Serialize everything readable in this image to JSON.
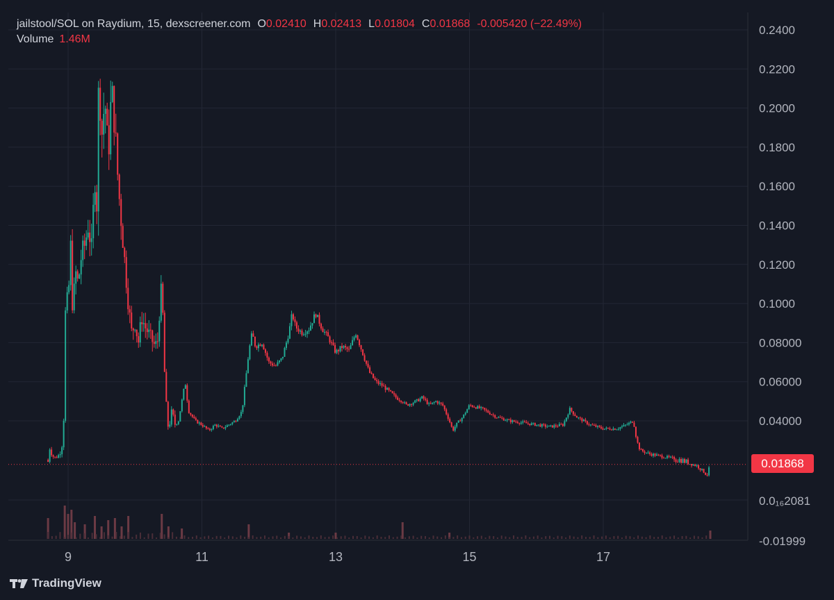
{
  "legend": {
    "symbol": "jailstool/SOL on Raydium, 15, dexscreener.com",
    "o_key": "O",
    "o_val": "0.02410",
    "h_key": "H",
    "h_val": "0.02413",
    "l_key": "L",
    "l_val": "0.01804",
    "c_key": "C",
    "c_val": "0.01868",
    "change": "-0.005420 (−22.49%)",
    "volume_label": "Volume",
    "volume_value": "1.46M"
  },
  "last_price_label": "0.01868",
  "brand": {
    "name": "TradingView",
    "icon": "tradingview-logo-icon"
  },
  "colors": {
    "background": "#151924",
    "up": "#22ab94",
    "down": "#f23645",
    "grid": "#232734",
    "axis_text": "#b2b5be"
  },
  "chart_data": {
    "type": "candlestick",
    "title": "jailstool/SOL on Raydium, 15, dexscreener.com",
    "x_ticks": [
      "9",
      "11",
      "13",
      "15",
      "17"
    ],
    "y_ticks": [
      "0.2400",
      "0.2200",
      "0.2000",
      "0.1800",
      "0.1600",
      "0.1400",
      "0.1200",
      "0.1000",
      "0.08000",
      "0.06000",
      "0.04000",
      "0.01868",
      "0.0₁₆2081",
      "-0.01999"
    ],
    "ylim": [
      -0.02,
      0.245
    ],
    "last_price": 0.01868,
    "grid": true,
    "price_path_day_value": [
      [
        8.7,
        0.02
      ],
      [
        8.72,
        0.0265
      ],
      [
        8.76,
        0.0225
      ],
      [
        8.8,
        0.021
      ],
      [
        8.85,
        0.022
      ],
      [
        8.9,
        0.025
      ],
      [
        8.93,
        0.034
      ],
      [
        8.95,
        0.07
      ],
      [
        8.97,
        0.12
      ],
      [
        9.0,
        0.085
      ],
      [
        9.03,
        0.145
      ],
      [
        9.05,
        0.105
      ],
      [
        9.08,
        0.095
      ],
      [
        9.1,
        0.118
      ],
      [
        9.15,
        0.11
      ],
      [
        9.2,
        0.125
      ],
      [
        9.25,
        0.13
      ],
      [
        9.3,
        0.14
      ],
      [
        9.35,
        0.128
      ],
      [
        9.4,
        0.165
      ],
      [
        9.43,
        0.15
      ],
      [
        9.46,
        0.22
      ],
      [
        9.5,
        0.185
      ],
      [
        9.55,
        0.205
      ],
      [
        9.6,
        0.175
      ],
      [
        9.65,
        0.21
      ],
      [
        9.7,
        0.19
      ],
      [
        9.75,
        0.16
      ],
      [
        9.8,
        0.14
      ],
      [
        9.85,
        0.12
      ],
      [
        9.9,
        0.1
      ],
      [
        9.95,
        0.085
      ],
      [
        10.0,
        0.09
      ],
      [
        10.05,
        0.08
      ],
      [
        10.1,
        0.093
      ],
      [
        10.15,
        0.088
      ],
      [
        10.2,
        0.085
      ],
      [
        10.3,
        0.078
      ],
      [
        10.35,
        0.082
      ],
      [
        10.38,
        0.11
      ],
      [
        10.42,
        0.092
      ],
      [
        10.45,
        0.055
      ],
      [
        10.5,
        0.035
      ],
      [
        10.55,
        0.045
      ],
      [
        10.6,
        0.038
      ],
      [
        10.65,
        0.04
      ],
      [
        10.75,
        0.06
      ],
      [
        10.8,
        0.045
      ],
      [
        10.9,
        0.04
      ],
      [
        11.0,
        0.038
      ],
      [
        11.1,
        0.035
      ],
      [
        11.2,
        0.038
      ],
      [
        11.3,
        0.036
      ],
      [
        11.4,
        0.038
      ],
      [
        11.5,
        0.04
      ],
      [
        11.6,
        0.045
      ],
      [
        11.65,
        0.06
      ],
      [
        11.7,
        0.075
      ],
      [
        11.75,
        0.085
      ],
      [
        11.8,
        0.078
      ],
      [
        11.9,
        0.08
      ],
      [
        12.0,
        0.07
      ],
      [
        12.1,
        0.068
      ],
      [
        12.2,
        0.072
      ],
      [
        12.3,
        0.085
      ],
      [
        12.35,
        0.095
      ],
      [
        12.4,
        0.088
      ],
      [
        12.5,
        0.085
      ],
      [
        12.6,
        0.087
      ],
      [
        12.7,
        0.095
      ],
      [
        12.8,
        0.087
      ],
      [
        12.9,
        0.082
      ],
      [
        13.0,
        0.075
      ],
      [
        13.1,
        0.078
      ],
      [
        13.2,
        0.076
      ],
      [
        13.3,
        0.085
      ],
      [
        13.4,
        0.075
      ],
      [
        13.5,
        0.065
      ],
      [
        13.6,
        0.06
      ],
      [
        13.7,
        0.058
      ],
      [
        13.8,
        0.055
      ],
      [
        13.9,
        0.052
      ],
      [
        14.0,
        0.05
      ],
      [
        14.05,
        0.048
      ],
      [
        14.2,
        0.05
      ],
      [
        14.3,
        0.052
      ],
      [
        14.4,
        0.048
      ],
      [
        14.5,
        0.05
      ],
      [
        14.6,
        0.048
      ],
      [
        14.7,
        0.04
      ],
      [
        14.75,
        0.035
      ],
      [
        14.8,
        0.038
      ],
      [
        14.9,
        0.042
      ],
      [
        15.0,
        0.048
      ],
      [
        15.2,
        0.046
      ],
      [
        15.4,
        0.042
      ],
      [
        15.6,
        0.04
      ],
      [
        15.8,
        0.039
      ],
      [
        16.0,
        0.038
      ],
      [
        16.2,
        0.037
      ],
      [
        16.4,
        0.038
      ],
      [
        16.5,
        0.046
      ],
      [
        16.6,
        0.042
      ],
      [
        16.8,
        0.038
      ],
      [
        17.0,
        0.036
      ],
      [
        17.2,
        0.036
      ],
      [
        17.35,
        0.038
      ],
      [
        17.45,
        0.04
      ],
      [
        17.5,
        0.03
      ],
      [
        17.55,
        0.025
      ],
      [
        17.7,
        0.023
      ],
      [
        18.0,
        0.021
      ],
      [
        18.2,
        0.02
      ],
      [
        18.4,
        0.018
      ],
      [
        18.5,
        0.015
      ],
      [
        18.55,
        0.013
      ],
      [
        18.6,
        0.0187
      ]
    ],
    "volume_spikes_day_relative": [
      [
        8.7,
        0.5
      ],
      [
        8.95,
        0.8
      ],
      [
        9.0,
        0.6
      ],
      [
        9.05,
        0.7
      ],
      [
        9.1,
        0.4
      ],
      [
        9.25,
        0.35
      ],
      [
        9.4,
        0.55
      ],
      [
        9.5,
        0.3
      ],
      [
        9.6,
        0.45
      ],
      [
        9.7,
        0.5
      ],
      [
        9.8,
        0.3
      ],
      [
        9.9,
        0.55
      ],
      [
        10.4,
        0.6
      ],
      [
        10.5,
        0.3
      ],
      [
        10.7,
        0.25
      ],
      [
        11.7,
        0.35
      ],
      [
        12.3,
        0.15
      ],
      [
        13.0,
        0.15
      ],
      [
        14.0,
        0.4
      ],
      [
        14.7,
        0.15
      ],
      [
        18.6,
        0.2
      ]
    ]
  }
}
